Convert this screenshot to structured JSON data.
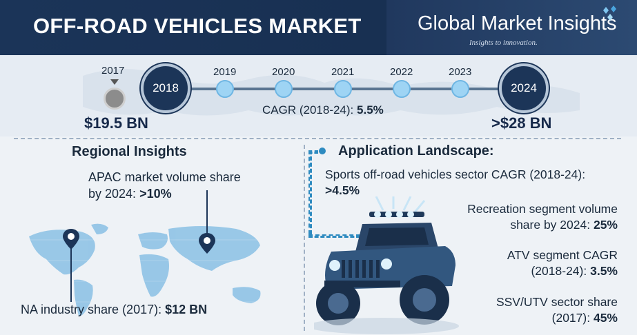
{
  "header": {
    "title": "OFF-ROAD VEHICLES MARKET",
    "brand": "Global Market Insights",
    "tagline": "Insights to innovation."
  },
  "timeline": {
    "start_year": "2017",
    "start_value": "$19.5 BN",
    "highlight_start": "2018",
    "years": [
      "2019",
      "2020",
      "2021",
      "2022",
      "2023"
    ],
    "highlight_end": "2024",
    "end_value": ">$28 BN",
    "cagr_label": "CAGR (2018-24):",
    "cagr_value": "5.5%"
  },
  "regional": {
    "title": "Regional Insights",
    "apac_line1": "APAC market volume share",
    "apac_line2_prefix": "by 2024:",
    "apac_value": ">10%",
    "na_label": "NA industry share (2017):",
    "na_value": "$12 BN"
  },
  "application": {
    "title": "Application Landscape:",
    "sports_label": "Sports off-road vehicles sector CAGR (2018-24):",
    "sports_value": ">4.5%",
    "recreation_line1": "Recreation segment volume",
    "recreation_line2_prefix": "share by 2024:",
    "recreation_value": "25%",
    "atv_line1": "ATV segment CAGR",
    "atv_line2_prefix": "(2018-24):",
    "atv_value": "3.5%",
    "ssv_line1": "SSV/UTV sector share",
    "ssv_line2_prefix": "(2017):",
    "ssv_value": "45%"
  },
  "colors": {
    "header_bg": "#16294a",
    "accent_blue": "#2e8bc0",
    "light_blue": "#9ed4f4",
    "map_blue": "#8fc3e6"
  }
}
